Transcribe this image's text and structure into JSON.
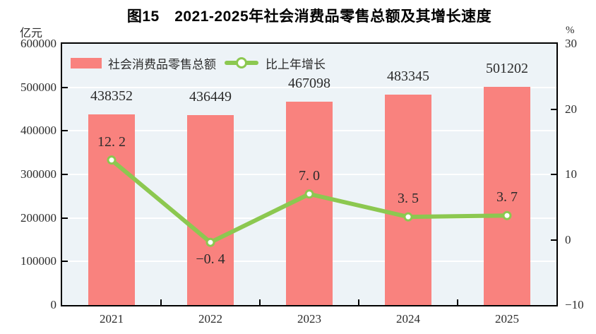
{
  "title": "图15　2021-2025年社会消费品零售总额及其增长速度",
  "left_axis_unit": "亿元",
  "right_axis_unit": "%",
  "legend": {
    "bar_label": "社会消费品零售总额",
    "line_label": "比上年增长"
  },
  "colors": {
    "bar": "#F9827E",
    "line": "#8CC850",
    "marker_fill": "#FFFFFF",
    "plot_bg": "#EDF3F7",
    "gridline": "#FFFFFF",
    "axis": "#000000",
    "text": "#2B2B2B"
  },
  "chart_data": {
    "type": "bar+line",
    "title": "图15　2021-2025年社会消费品零售总额及其增长速度",
    "categories": [
      "2021",
      "2022",
      "2023",
      "2024",
      "2025"
    ],
    "series": [
      {
        "name": "社会消费品零售总额",
        "type": "bar",
        "axis": "left",
        "unit": "亿元",
        "values": [
          438352,
          436449,
          467098,
          483345,
          501202
        ],
        "labels": [
          "438352",
          "436449",
          "467098",
          "483345",
          "501202"
        ]
      },
      {
        "name": "比上年增长",
        "type": "line",
        "axis": "right",
        "unit": "%",
        "values": [
          12.2,
          -0.4,
          7.0,
          3.5,
          3.7
        ],
        "labels": [
          "12. 2",
          "−0. 4",
          "7. 0",
          "3. 5",
          "3. 7"
        ],
        "label_positions": [
          "above",
          "below",
          "above",
          "above",
          "above"
        ]
      }
    ],
    "left_axis": {
      "min": 0,
      "max": 600000,
      "tick_interval": 100000,
      "tick_labels": [
        "600000",
        "500000",
        "400000",
        "300000",
        "200000",
        "100000",
        "0"
      ]
    },
    "right_axis": {
      "min": -10,
      "max": 30,
      "tick_interval": 10,
      "tick_labels": [
        "30",
        "20",
        "10",
        "0",
        "−10"
      ]
    },
    "grid": "horizontal-white-behind-bars",
    "legend_position": "top-left-inside"
  }
}
